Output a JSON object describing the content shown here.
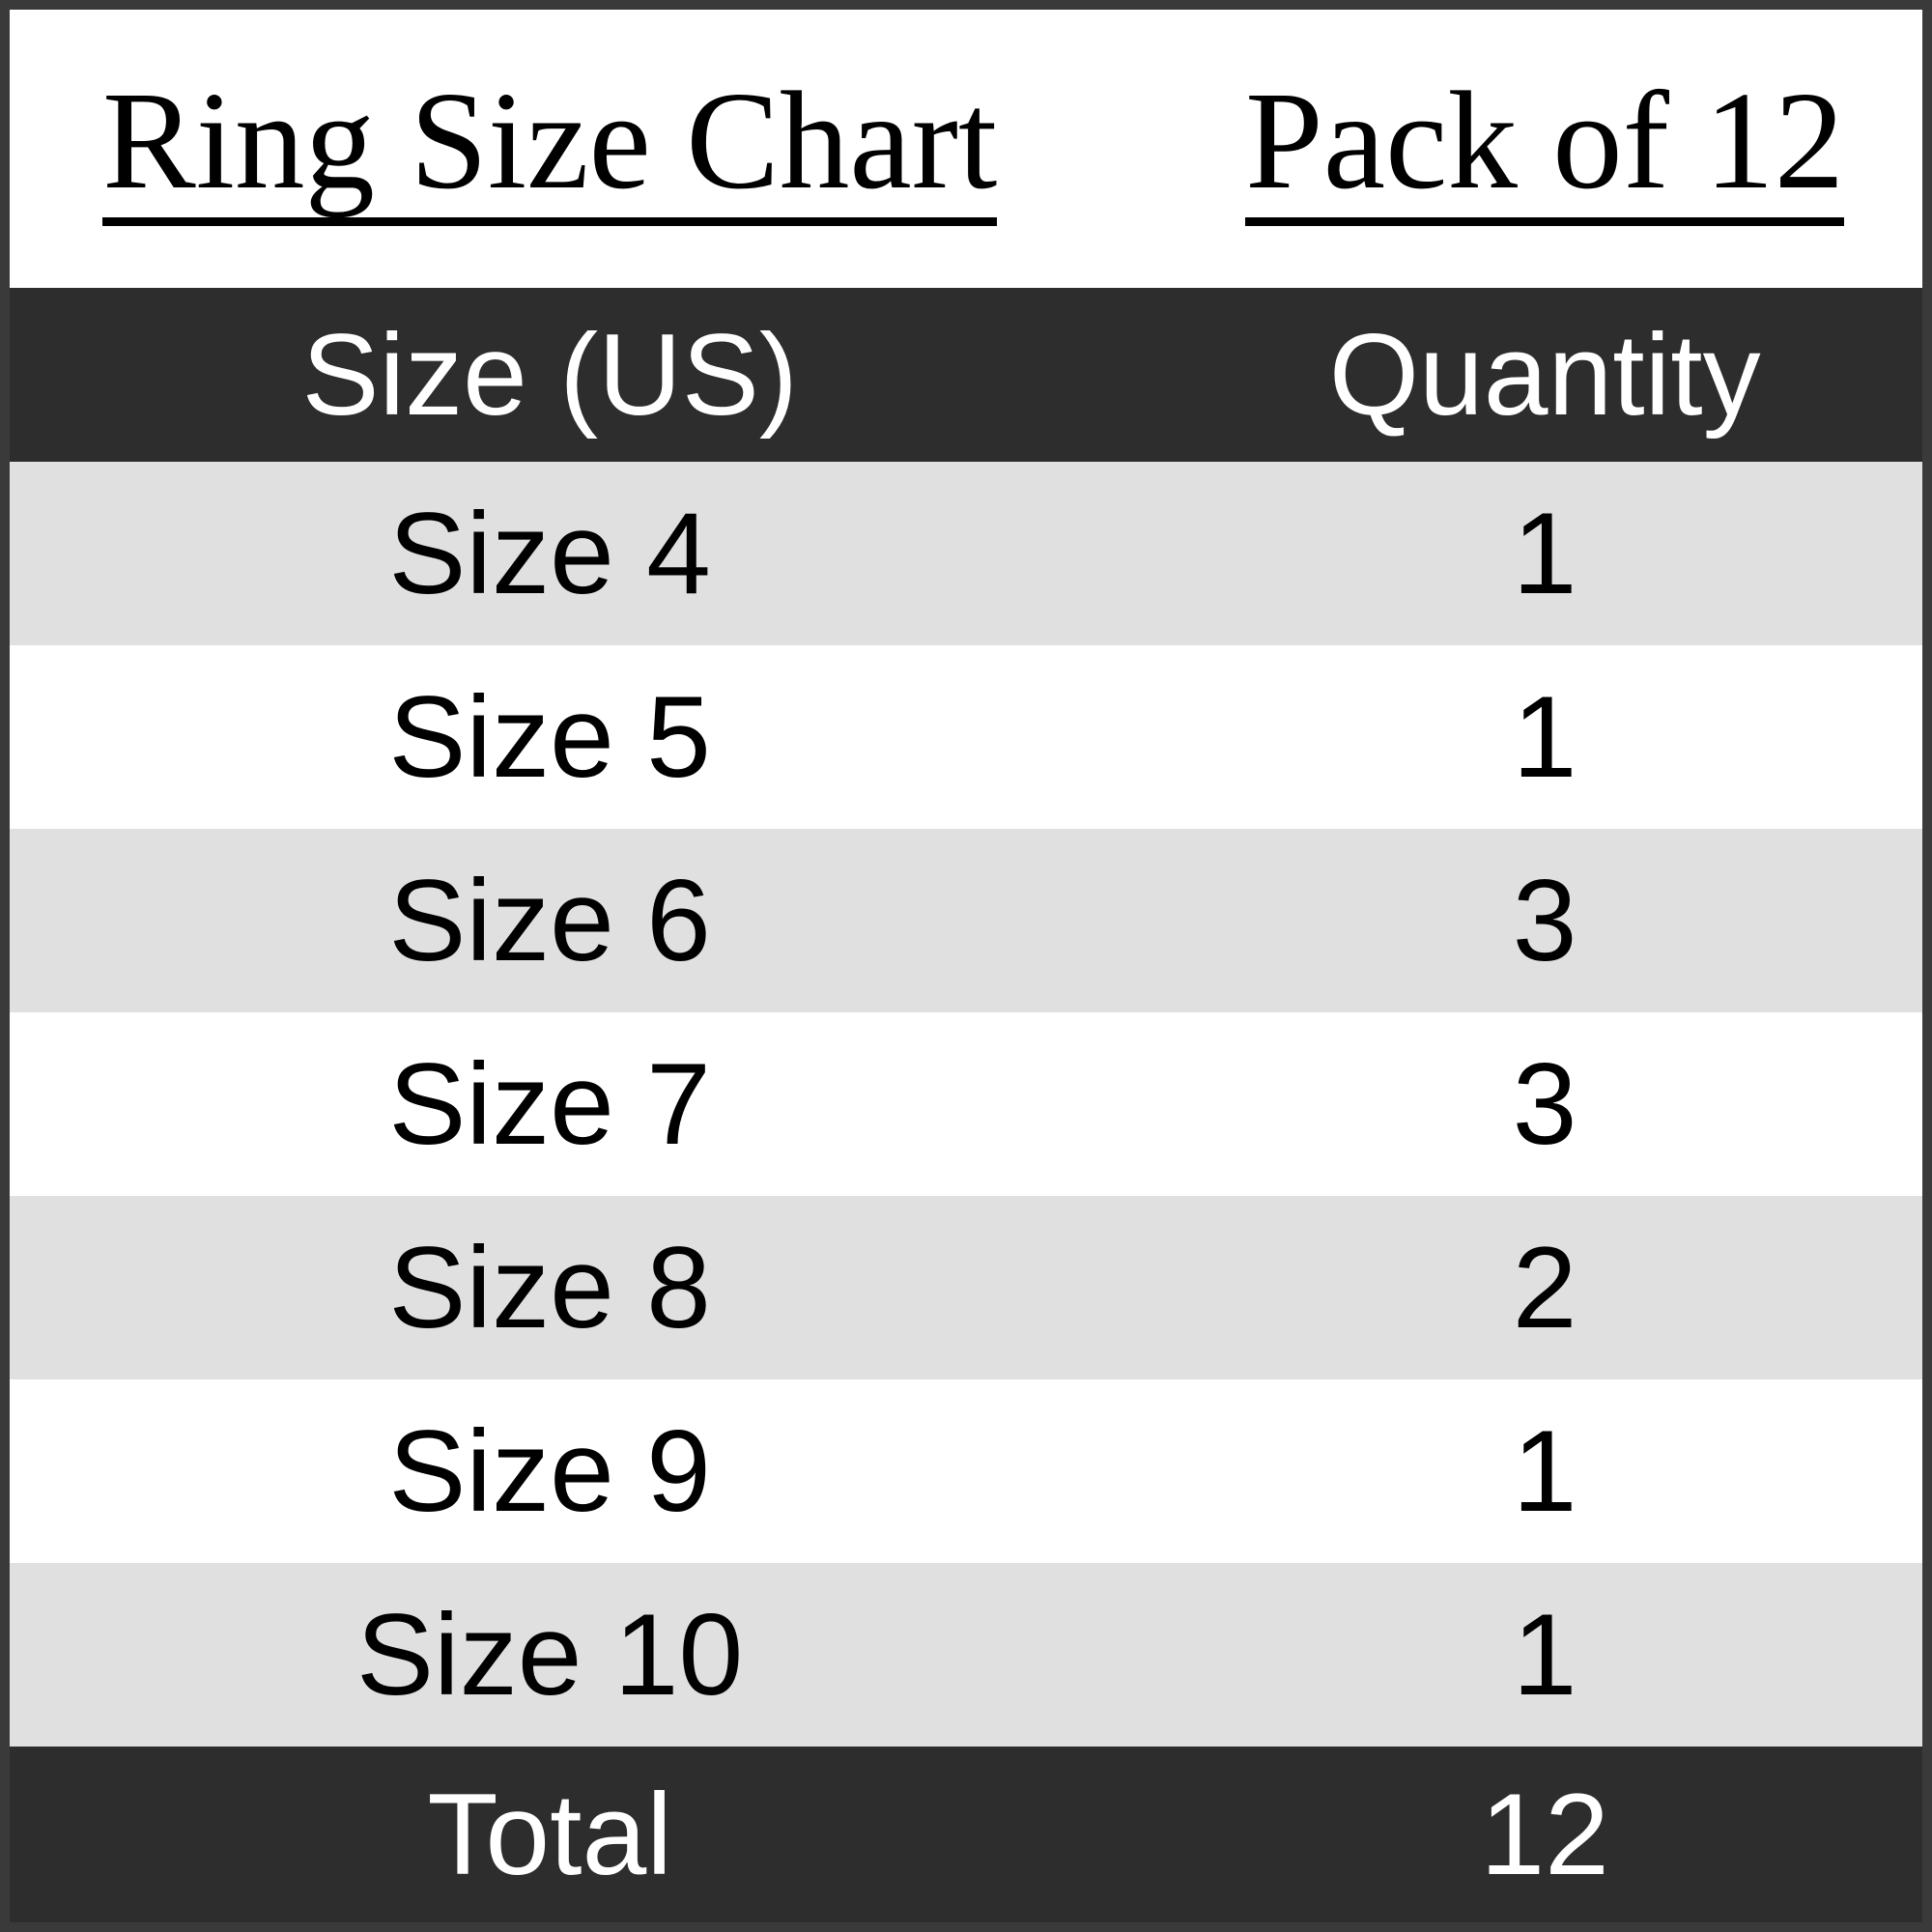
{
  "header": {
    "title": "Ring Size Chart",
    "pack_label": "Pack of 12"
  },
  "table": {
    "columns": [
      "Size (US)",
      "Quantity"
    ],
    "rows": [
      {
        "size": "Size 4",
        "qty": "1"
      },
      {
        "size": "Size 5",
        "qty": "1"
      },
      {
        "size": "Size 6",
        "qty": "3"
      },
      {
        "size": "Size 7",
        "qty": "3"
      },
      {
        "size": "Size 8",
        "qty": "2"
      },
      {
        "size": "Size 9",
        "qty": "1"
      },
      {
        "size": "Size 10",
        "qty": "1"
      }
    ],
    "total_label": "Total",
    "total_value": "12"
  },
  "colors": {
    "frame_border": "#3a3a3a",
    "header_bg": "#2d2d2d",
    "header_text": "#ffffff",
    "row_alt_bg": "#e0e0e0",
    "row_bg": "#ffffff",
    "body_text": "#000000"
  },
  "chart_data": {
    "type": "table",
    "title": "Ring Size Chart",
    "subtitle": "Pack of 12",
    "columns": [
      "Size (US)",
      "Quantity"
    ],
    "rows": [
      [
        "Size 4",
        1
      ],
      [
        "Size 5",
        1
      ],
      [
        "Size 6",
        3
      ],
      [
        "Size 7",
        3
      ],
      [
        "Size 8",
        2
      ],
      [
        "Size 9",
        1
      ],
      [
        "Size 10",
        1
      ]
    ],
    "total_row": [
      "Total",
      12
    ],
    "layout": {
      "header_style": "dark-band-white-text",
      "row_striping": "alternating-gray-white",
      "alignment": "center"
    }
  }
}
